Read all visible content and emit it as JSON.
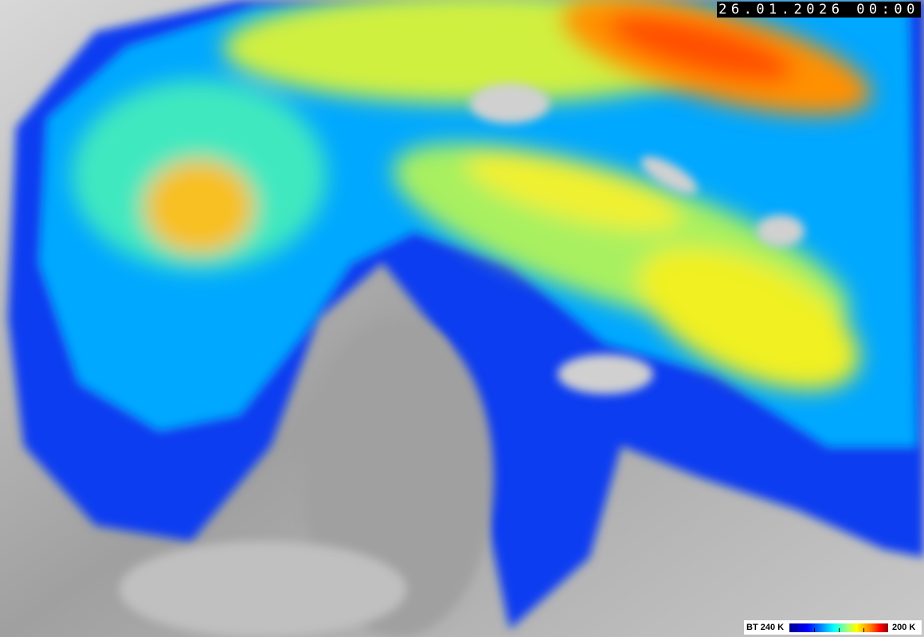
{
  "image": {
    "description_type": "enhanced infrared satellite imagery",
    "timestamp": "26.01.2026 00:00"
  },
  "legend": {
    "low_label": "BT 240 K",
    "high_label": "200 K",
    "colors": [
      "#00008c",
      "#0000ff",
      "#00a0ff",
      "#00ffff",
      "#a0ff80",
      "#ffff00",
      "#ff8000",
      "#ff0000",
      "#900000"
    ]
  }
}
